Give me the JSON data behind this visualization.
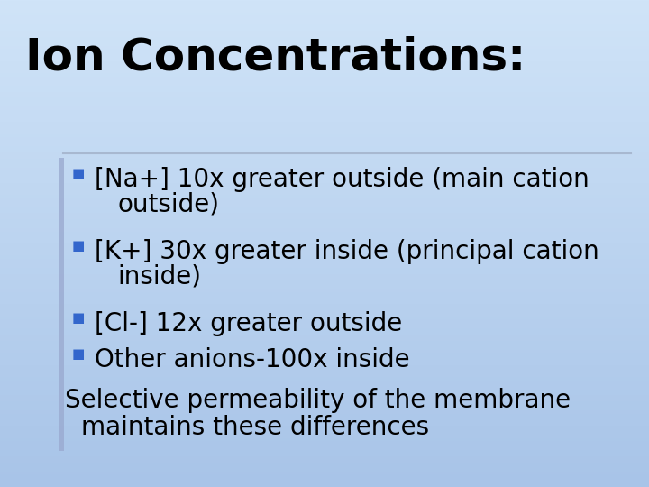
{
  "title": "Ion Concentrations:",
  "title_fontsize": 36,
  "title_color": "#000000",
  "bullet_fontsize": 20,
  "footer_fontsize": 20,
  "text_color": "#000000",
  "bullet_color": "#3366cc",
  "bg_color": "#c8ddf5",
  "separator_color": "#a8b8d0",
  "left_bar_color": "#9aaad0",
  "bullets": [
    {
      "line1": "[Na+] 10x greater outside (main cation",
      "line2": "   outside)"
    },
    {
      "line1": "[K+] 30x greater inside (principal cation",
      "line2": "   inside)"
    },
    {
      "line1": "[Cl-] 12x greater outside",
      "line2": null
    },
    {
      "line1": "Other anions-100x inside",
      "line2": null
    }
  ],
  "footer1": "Selective permeability of the membrane",
  "footer2": "   maintains these differences"
}
